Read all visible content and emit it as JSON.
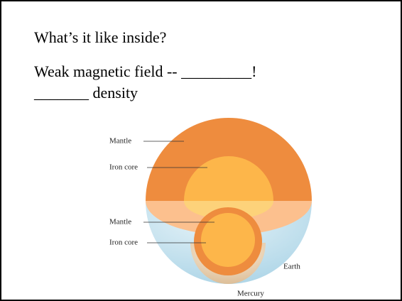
{
  "slide": {
    "lines": [
      "What’s it like inside?",
      "Weak magnetic field -- _________!",
      "_______ density"
    ]
  },
  "figure": {
    "labels": [
      "Mantle",
      "Iron core",
      "Mantle",
      "Iron core",
      "Earth",
      "Mercury"
    ]
  }
}
